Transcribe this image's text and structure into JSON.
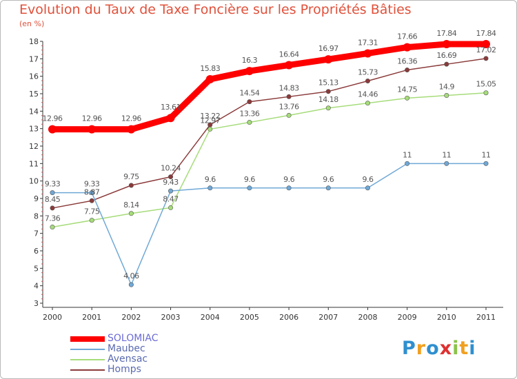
{
  "title": "Evolution du Taux de Taxe Foncière sur les Propriétés Bâties",
  "subtitle": "(en %)",
  "logo": {
    "letters": [
      "P",
      "r",
      "o",
      "x",
      "i",
      "t",
      "i"
    ],
    "colors": [
      "#2f8fcf",
      "#f0a020",
      "#2f8fcf",
      "#e03030",
      "#8bc34a",
      "#f0a020",
      "#2f8fcf"
    ]
  },
  "chart_data": {
    "type": "line",
    "x": [
      "2000",
      "2001",
      "2002",
      "2003",
      "2004",
      "2005",
      "2006",
      "2007",
      "2008",
      "2009",
      "2010",
      "2011"
    ],
    "ylim": [
      3,
      18
    ],
    "yticks": [
      "3",
      "4",
      "5",
      "6",
      "7",
      "8",
      "9",
      "10",
      "11",
      "12",
      "13",
      "14",
      "15",
      "16",
      "17",
      "18"
    ],
    "grid": false,
    "legend_position": "bottom-left",
    "series": [
      {
        "name": "SOLOMIAC",
        "color": "#ff0000",
        "values": [
          12.96,
          12.96,
          12.96,
          13.61,
          15.83,
          16.3,
          16.64,
          16.97,
          17.31,
          17.66,
          17.84,
          17.84
        ],
        "labels": [
          "12.96",
          "12.96",
          "12.96",
          "13.61",
          "15.83",
          "16.3",
          "16.64",
          "16.97",
          "17.31",
          "17.66",
          "17.84",
          "17.84"
        ]
      },
      {
        "name": "Maubec",
        "color": "#6fa8d6",
        "values": [
          9.33,
          9.33,
          4.06,
          9.43,
          9.6,
          9.6,
          9.6,
          9.6,
          9.6,
          11,
          11,
          11
        ],
        "labels": [
          "9.33",
          "9.33",
          "4.06",
          "9.43",
          "9.6",
          "9.6",
          "9.6",
          "9.6",
          "9.6",
          "11",
          "11",
          "11"
        ]
      },
      {
        "name": "Avensac",
        "color": "#a6dc7a",
        "values": [
          7.36,
          7.75,
          8.14,
          8.47,
          12.97,
          13.36,
          13.76,
          14.18,
          14.46,
          14.75,
          14.9,
          15.05
        ],
        "labels": [
          "7.36",
          "7.75",
          "8.14",
          "8.47",
          "12.97",
          "13.36",
          "13.76",
          "14.18",
          "14.46",
          "14.75",
          "14.9",
          "15.05"
        ]
      },
      {
        "name": "Homps",
        "color": "#8b3a3a",
        "values": [
          8.45,
          8.87,
          9.75,
          10.24,
          13.22,
          14.54,
          14.83,
          15.13,
          15.73,
          16.36,
          16.69,
          17.02
        ],
        "labels": [
          "8.45",
          "8.87",
          "9.75",
          "10.24",
          "13.22",
          "14.54",
          "14.83",
          "15.13",
          "15.73",
          "16.36",
          "16.69",
          "17.02"
        ]
      }
    ]
  }
}
